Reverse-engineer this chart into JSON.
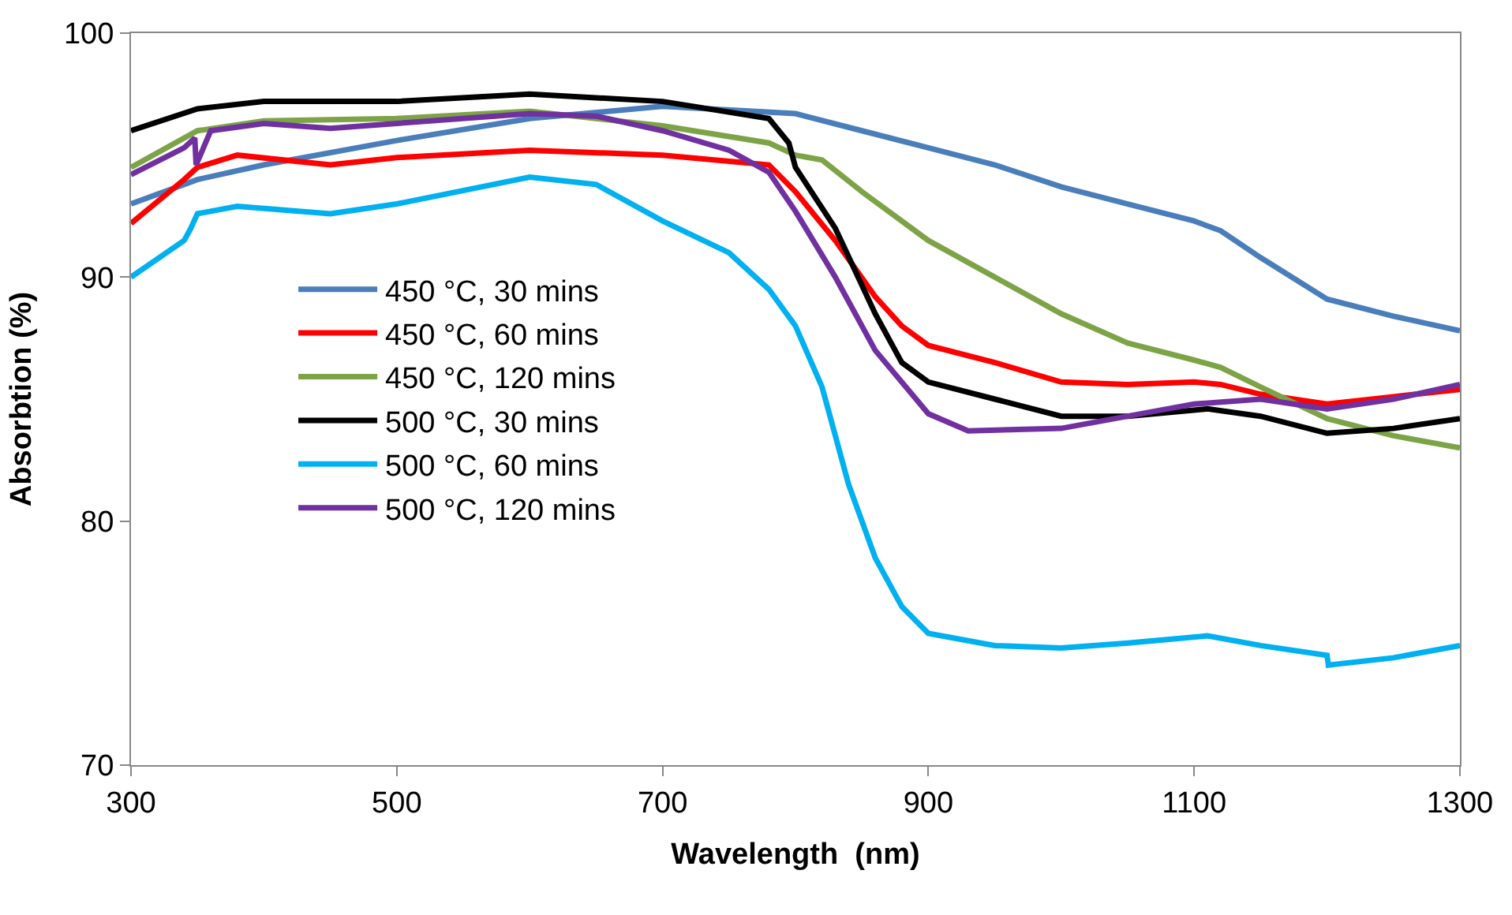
{
  "chart_data": {
    "type": "line",
    "xlabel": "Wavelength  (nm)",
    "ylabel": "Absorbtion (%)",
    "xlim": [
      300,
      1300
    ],
    "xticks": [
      300,
      500,
      700,
      900,
      1100,
      1300
    ],
    "ylim": [
      70,
      100
    ],
    "yticks": [
      70,
      80,
      90,
      100
    ],
    "legend": "left",
    "marker": "none",
    "line_style": "solid",
    "series": [
      {
        "name": "450 °C, 30 mins",
        "color": "#4a7ebb",
        "x": [
          300,
          350,
          400,
          500,
          600,
          700,
          800,
          850,
          900,
          950,
          1000,
          1050,
          1100,
          1120,
          1150,
          1200,
          1250,
          1300
        ],
        "values": [
          93.0,
          94.0,
          94.6,
          95.6,
          96.5,
          97.0,
          96.7,
          96.0,
          95.3,
          94.6,
          93.7,
          93.0,
          92.3,
          91.9,
          90.8,
          89.1,
          88.4,
          87.8
        ]
      },
      {
        "name": "450 °C, 60 mins",
        "color": "#ff0000",
        "x": [
          300,
          340,
          350,
          380,
          450,
          500,
          600,
          700,
          780,
          800,
          830,
          860,
          880,
          900,
          950,
          1000,
          1050,
          1100,
          1120,
          1150,
          1200,
          1250,
          1300
        ],
        "values": [
          92.2,
          94.0,
          94.5,
          95.0,
          94.6,
          94.9,
          95.2,
          95.0,
          94.6,
          93.5,
          91.5,
          89.2,
          88.0,
          87.2,
          86.5,
          85.7,
          85.6,
          85.7,
          85.6,
          85.2,
          84.8,
          85.1,
          85.4
        ]
      },
      {
        "name": "450 °C, 120 mins",
        "color": "#7ca446",
        "x": [
          300,
          350,
          400,
          500,
          600,
          700,
          780,
          800,
          820,
          850,
          900,
          950,
          1000,
          1050,
          1100,
          1120,
          1150,
          1200,
          1250,
          1300
        ],
        "values": [
          94.5,
          96.0,
          96.4,
          96.5,
          96.8,
          96.2,
          95.5,
          95.0,
          94.8,
          93.5,
          91.5,
          90.0,
          88.5,
          87.3,
          86.6,
          86.3,
          85.5,
          84.2,
          83.5,
          83.0
        ]
      },
      {
        "name": "500 °C, 30 mins",
        "color": "#000000",
        "x": [
          300,
          350,
          400,
          500,
          600,
          700,
          780,
          795,
          800,
          830,
          860,
          880,
          900,
          950,
          1000,
          1050,
          1110,
          1150,
          1200,
          1250,
          1300
        ],
        "values": [
          96.0,
          96.9,
          97.2,
          97.2,
          97.5,
          97.2,
          96.5,
          95.5,
          94.5,
          92.0,
          88.5,
          86.5,
          85.7,
          85.0,
          84.3,
          84.3,
          84.6,
          84.3,
          83.6,
          83.8,
          84.2
        ]
      },
      {
        "name": "500 °C, 60 mins",
        "color": "#00b0f0",
        "x": [
          300,
          340,
          345,
          350,
          380,
          450,
          500,
          600,
          650,
          700,
          750,
          780,
          800,
          820,
          840,
          860,
          880,
          900,
          950,
          1000,
          1050,
          1110,
          1150,
          1200,
          1201,
          1250,
          1300
        ],
        "values": [
          90.0,
          91.5,
          92.0,
          92.6,
          92.9,
          92.6,
          93.0,
          94.1,
          93.8,
          92.3,
          91.0,
          89.5,
          88.0,
          85.5,
          81.5,
          78.5,
          76.5,
          75.4,
          74.9,
          74.8,
          75.0,
          75.3,
          74.9,
          74.5,
          74.1,
          74.4,
          74.9
        ]
      },
      {
        "name": "500 °C, 120 mins",
        "color": "#7030a0",
        "x": [
          300,
          340,
          348,
          349,
          360,
          400,
          450,
          500,
          600,
          650,
          700,
          750,
          780,
          800,
          830,
          860,
          900,
          930,
          1000,
          1050,
          1100,
          1150,
          1200,
          1250,
          1300
        ],
        "values": [
          94.2,
          95.3,
          95.7,
          94.6,
          96.0,
          96.3,
          96.1,
          96.3,
          96.7,
          96.6,
          96.0,
          95.2,
          94.3,
          92.7,
          90.0,
          87.0,
          84.4,
          83.7,
          83.8,
          84.3,
          84.8,
          85.0,
          84.6,
          85.0,
          85.6
        ]
      }
    ]
  }
}
